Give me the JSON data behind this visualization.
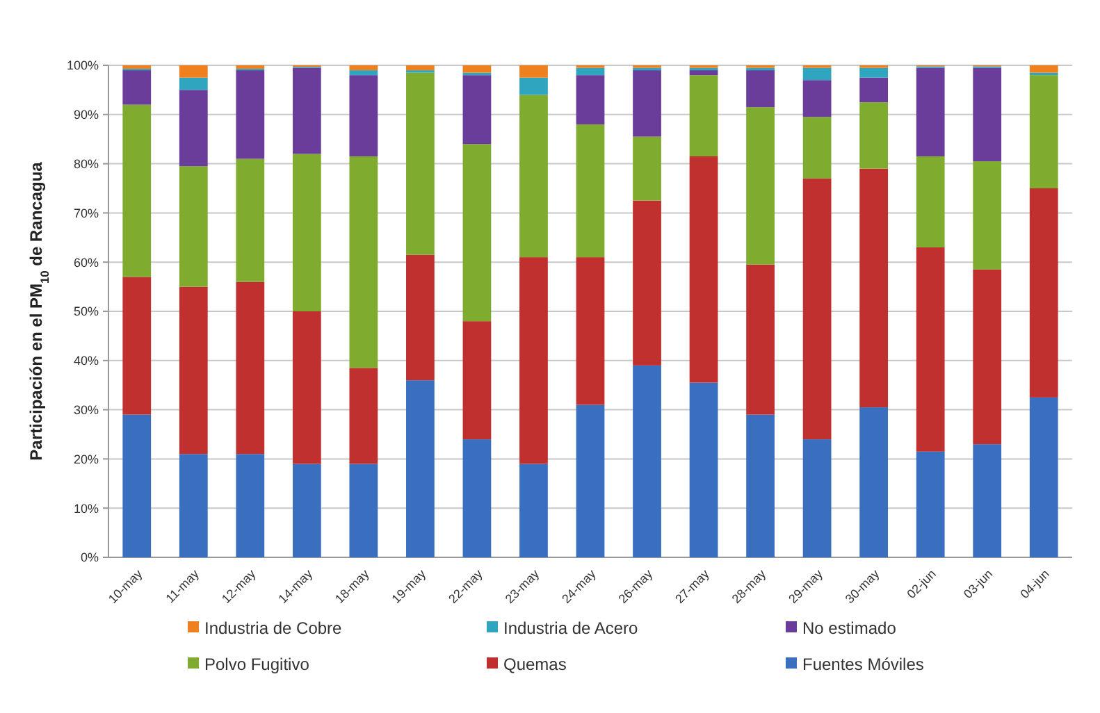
{
  "chart_data": {
    "type": "bar",
    "stacked": true,
    "ylabel": "Participación en el PM$_{10}$ de Rancagua",
    "categories": [
      "10-may",
      "11-may",
      "12-may",
      "14-may",
      "18-may",
      "19-may",
      "22-may",
      "23-may",
      "24-may",
      "26-may",
      "27-may",
      "28-may",
      "29-may",
      "30-may",
      "02-jun",
      "03-jun",
      "04-jun"
    ],
    "series": [
      {
        "name": "Fuentes Móviles",
        "color": "#3a6fc0",
        "values": [
          29,
          21,
          21,
          19,
          19,
          36,
          24,
          19,
          31,
          39,
          35.5,
          29,
          24,
          30.5,
          21.5,
          23,
          32.5
        ]
      },
      {
        "name": "Quemas",
        "color": "#c0302e",
        "values": [
          28,
          34,
          35,
          31,
          19.5,
          25.5,
          24,
          42,
          30,
          33.5,
          46,
          30.5,
          53,
          48.5,
          41.5,
          35.5,
          42.5
        ]
      },
      {
        "name": "Polvo Fugitivo",
        "color": "#7fab2e",
        "values": [
          35,
          24.5,
          25,
          32,
          43,
          37,
          36,
          33,
          27,
          13,
          16.5,
          32,
          12.5,
          13.5,
          18.5,
          22,
          23
        ]
      },
      {
        "name": "No estimado",
        "color": "#6a3d9a",
        "values": [
          7,
          15.5,
          18,
          17.5,
          16.5,
          0,
          14,
          0,
          10,
          13.5,
          1,
          7.5,
          7.5,
          5,
          18,
          19,
          0
        ]
      },
      {
        "name": "Industria de Acero",
        "color": "#2fa5c0",
        "values": [
          0.3,
          2.5,
          0.3,
          0.2,
          1,
          0.5,
          0.5,
          3.5,
          1.5,
          0.5,
          0.5,
          0.5,
          2.5,
          2,
          0.3,
          0.3,
          0.5
        ]
      },
      {
        "name": "Industria de Cobre",
        "color": "#f07f1e",
        "values": [
          0.7,
          2.5,
          0.7,
          0.3,
          1,
          1,
          1.5,
          2.5,
          0.5,
          0.5,
          0.5,
          0.5,
          0.5,
          0.5,
          0.2,
          0.2,
          1.5
        ]
      }
    ],
    "ylim": [
      0,
      100
    ],
    "yticks": [
      {
        "value": 0,
        "label": "0%"
      },
      {
        "value": 10,
        "label": "10%"
      },
      {
        "value": 20,
        "label": "20%"
      },
      {
        "value": 30,
        "label": "30%"
      },
      {
        "value": 40,
        "label": "40%"
      },
      {
        "value": 50,
        "label": "50%"
      },
      {
        "value": 60,
        "label": "60%"
      },
      {
        "value": 70,
        "label": "70%"
      },
      {
        "value": 80,
        "label": "80%"
      },
      {
        "value": 90,
        "label": "90%"
      },
      {
        "value": 100,
        "label": "100%"
      }
    ],
    "grid": "y",
    "legend": "bottom"
  }
}
